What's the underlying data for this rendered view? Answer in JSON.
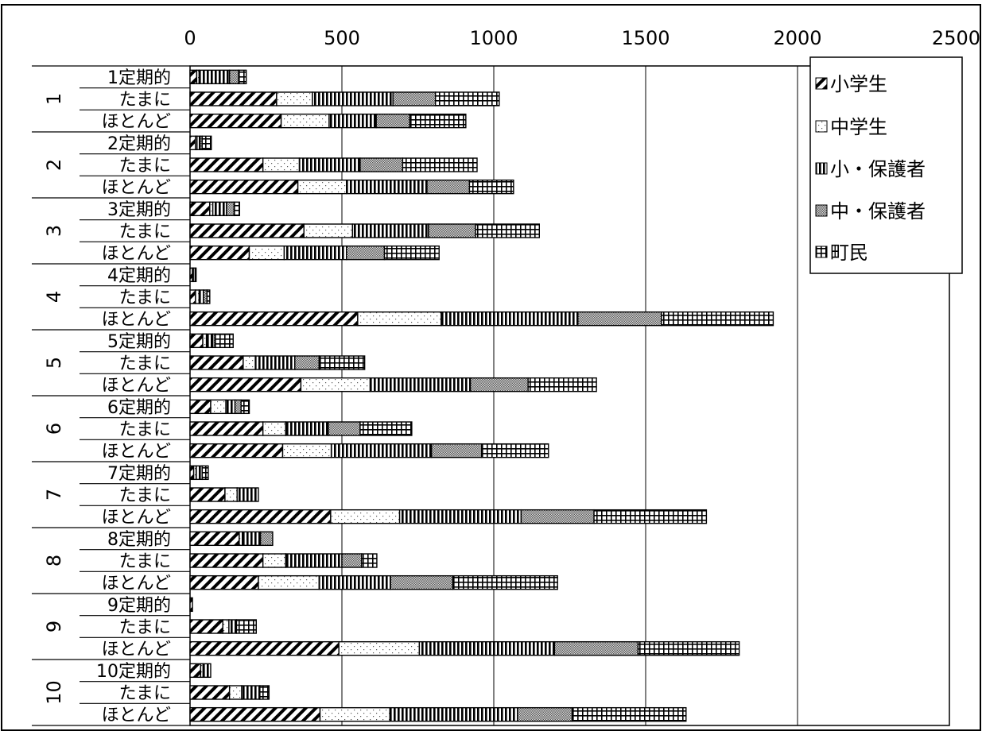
{
  "chart_data": {
    "type": "bar",
    "orientation": "horizontal",
    "stacked": true,
    "title": "",
    "xlabel": "",
    "ylabel": "",
    "xlim": [
      0,
      2500
    ],
    "x_ticks": [
      0,
      500,
      1000,
      1500,
      2000,
      2500
    ],
    "x_axis_position": "top",
    "grid": true,
    "legend_position": "top-right",
    "groups": [
      "1",
      "2",
      "3",
      "4",
      "5",
      "6",
      "7",
      "8",
      "9",
      "10"
    ],
    "categories": [
      "1定期的",
      "たまに",
      "ほとんど",
      "2定期的",
      "たまに",
      "ほとんど",
      "3定期的",
      "たまに",
      "ほとんど",
      "4定期的",
      "たまに",
      "ほとんど",
      "5定期的",
      "たまに",
      "ほとんど",
      "6定期的",
      "たまに",
      "ほとんど",
      "7定期的",
      "たまに",
      "ほとんど",
      "8定期的",
      "たまに",
      "ほとんど",
      "9定期的",
      "たまに",
      "ほとんど",
      "10定期的",
      "たまに",
      "ほとんど"
    ],
    "series": [
      {
        "name": "小学生",
        "pattern": "diagonal",
        "values": [
          22,
          285,
          300,
          18,
          240,
          355,
          65,
          375,
          195,
          8,
          18,
          552,
          42,
          175,
          365,
          68,
          240,
          305,
          12,
          115,
          463,
          162,
          240,
          225,
          8,
          108,
          490,
          35,
          130,
          428
        ]
      },
      {
        "name": "中学生",
        "pattern": "dots",
        "values": [
          8,
          118,
          158,
          5,
          120,
          160,
          10,
          160,
          115,
          3,
          12,
          275,
          12,
          40,
          228,
          50,
          75,
          160,
          8,
          40,
          227,
          10,
          75,
          200,
          0,
          20,
          265,
          8,
          40,
          230
        ]
      },
      {
        "name": "小・保護者",
        "pattern": "vertical",
        "values": [
          100,
          265,
          155,
          10,
          200,
          265,
          45,
          250,
          205,
          6,
          14,
          450,
          20,
          130,
          330,
          30,
          140,
          330,
          20,
          70,
          400,
          60,
          185,
          235,
          0,
          25,
          445,
          25,
          60,
          420
        ]
      },
      {
        "name": "中・保護者",
        "pattern": "crosshatch",
        "values": [
          30,
          140,
          110,
          7,
          140,
          140,
          25,
          155,
          125,
          0,
          12,
          275,
          8,
          80,
          190,
          20,
          105,
          165,
          0,
          0,
          240,
          40,
          65,
          205,
          0,
          0,
          275,
          0,
          0,
          180
        ]
      },
      {
        "name": "町民",
        "pattern": "grid",
        "values": [
          25,
          210,
          185,
          30,
          245,
          145,
          18,
          210,
          180,
          3,
          9,
          368,
          60,
          150,
          225,
          27,
          170,
          220,
          20,
          0,
          370,
          0,
          50,
          345,
          0,
          65,
          333,
          0,
          30,
          375
        ]
      }
    ]
  },
  "colors": {
    "bar_fill": "#ffffff",
    "ink": "#000000",
    "grid": "#000000"
  }
}
